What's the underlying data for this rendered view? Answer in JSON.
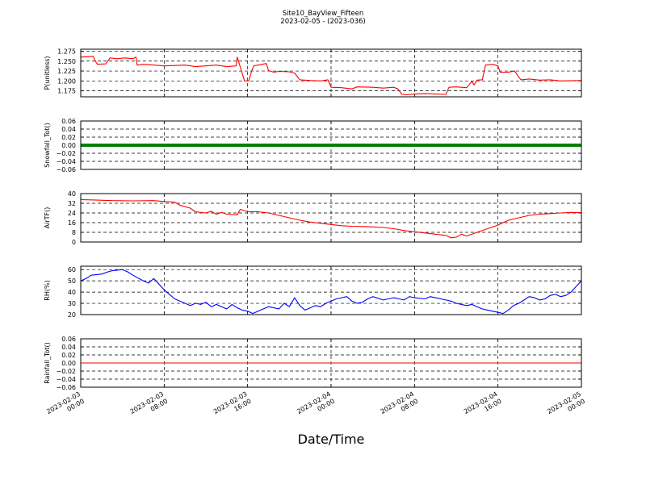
{
  "chart_data": {
    "type": "line",
    "title": "Site10_BayView_Fifteen",
    "subtitle": "2023-02-05 - (2023-036)",
    "xlabel": "Date/Time",
    "x_tick_labels": [
      [
        "2023-02-03",
        "00:00"
      ],
      [
        "2023-02-03",
        "08:00"
      ],
      [
        "2023-02-03",
        "16:00"
      ],
      [
        "2023-02-04",
        "00:00"
      ],
      [
        "2023-02-04",
        "08:00"
      ],
      [
        "2023-02-04",
        "16:00"
      ],
      [
        "2023-02-05",
        "00:00"
      ]
    ],
    "x_hours_range": [
      0,
      48
    ],
    "grid": true,
    "panels": [
      {
        "ylabel": "P(unitless)",
        "color": "#ff0000",
        "ylim": [
          1.16,
          1.28
        ],
        "yticks": [
          1.175,
          1.2,
          1.225,
          1.25,
          1.275
        ],
        "ytick_labels": [
          "1.175",
          "1.200",
          "1.225",
          "1.250",
          "1.275"
        ],
        "points": [
          [
            0,
            1.26
          ],
          [
            1.2,
            1.262
          ],
          [
            1.4,
            1.25
          ],
          [
            1.6,
            1.242
          ],
          [
            2.4,
            1.243
          ],
          [
            2.8,
            1.258
          ],
          [
            3.5,
            1.256
          ],
          [
            4.2,
            1.258
          ],
          [
            5,
            1.256
          ],
          [
            5.3,
            1.26
          ],
          [
            5.4,
            1.24
          ],
          [
            6,
            1.242
          ],
          [
            7,
            1.24
          ],
          [
            8,
            1.238
          ],
          [
            10,
            1.24
          ],
          [
            11,
            1.236
          ],
          [
            13,
            1.24
          ],
          [
            14,
            1.236
          ],
          [
            14.9,
            1.238
          ],
          [
            15,
            1.26
          ],
          [
            15.4,
            1.226
          ],
          [
            15.7,
            1.2
          ],
          [
            16.1,
            1.2
          ],
          [
            16.4,
            1.226
          ],
          [
            16.6,
            1.238
          ],
          [
            17.4,
            1.242
          ],
          [
            17.8,
            1.244
          ],
          [
            18,
            1.226
          ],
          [
            18.5,
            1.222
          ],
          [
            19,
            1.224
          ],
          [
            20,
            1.223
          ],
          [
            20.5,
            1.22
          ],
          [
            21,
            1.203
          ],
          [
            22,
            1.201
          ],
          [
            23,
            1.2
          ],
          [
            23.7,
            1.203
          ],
          [
            24,
            1.184
          ],
          [
            25,
            1.183
          ],
          [
            26,
            1.18
          ],
          [
            26.5,
            1.185
          ],
          [
            28,
            1.184
          ],
          [
            29,
            1.182
          ],
          [
            30,
            1.184
          ],
          [
            30.4,
            1.18
          ],
          [
            30.8,
            1.166
          ],
          [
            31.2,
            1.165
          ],
          [
            32,
            1.167
          ],
          [
            33,
            1.168
          ],
          [
            34,
            1.167
          ],
          [
            35,
            1.166
          ],
          [
            35.3,
            1.184
          ],
          [
            36,
            1.185
          ],
          [
            37,
            1.183
          ],
          [
            37.5,
            1.199
          ],
          [
            37.7,
            1.19
          ],
          [
            38,
            1.202
          ],
          [
            38.5,
            1.203
          ],
          [
            38.8,
            1.24
          ],
          [
            39.5,
            1.242
          ],
          [
            40,
            1.238
          ],
          [
            40.2,
            1.222
          ],
          [
            41,
            1.222
          ],
          [
            41.6,
            1.225
          ],
          [
            42,
            1.21
          ],
          [
            42.2,
            1.203
          ],
          [
            43,
            1.205
          ],
          [
            44,
            1.202
          ],
          [
            45,
            1.203
          ],
          [
            46,
            1.2
          ],
          [
            48,
            1.201
          ]
        ]
      },
      {
        "ylabel": "Snowfall_Tot()",
        "color": "#008000",
        "ylim": [
          -0.06,
          0.06
        ],
        "yticks": [
          -0.06,
          -0.04,
          -0.02,
          0.0,
          0.02,
          0.04,
          0.06
        ],
        "ytick_labels": [
          "−0.06",
          "−0.04",
          "−0.02",
          "0.00",
          "0.02",
          "0.04",
          "0.06"
        ],
        "style": "thick",
        "points": [
          [
            0,
            0
          ],
          [
            48,
            0
          ]
        ]
      },
      {
        "ylabel": "AirTF()",
        "color": "#ff0000",
        "ylim": [
          0,
          40
        ],
        "yticks": [
          0,
          8,
          16,
          24,
          32,
          40
        ],
        "ytick_labels": [
          "0",
          "8",
          "16",
          "24",
          "32",
          "40"
        ],
        "points": [
          [
            0,
            35
          ],
          [
            1,
            34.8
          ],
          [
            3,
            34.2
          ],
          [
            5,
            34
          ],
          [
            7,
            34.2
          ],
          [
            8,
            33.5
          ],
          [
            9,
            33
          ],
          [
            9.5,
            30.5
          ],
          [
            10.5,
            28
          ],
          [
            11,
            25
          ],
          [
            12,
            24
          ],
          [
            12.5,
            25.5
          ],
          [
            13,
            23
          ],
          [
            13.5,
            24.5
          ],
          [
            14,
            23
          ],
          [
            15,
            22.5
          ],
          [
            15.3,
            27
          ],
          [
            16,
            25
          ],
          [
            17,
            25
          ],
          [
            18,
            24
          ],
          [
            19,
            22
          ],
          [
            20,
            20
          ],
          [
            21,
            18
          ],
          [
            22,
            16.5
          ],
          [
            23,
            15.5
          ],
          [
            24,
            14.5
          ],
          [
            25,
            13.5
          ],
          [
            26,
            13
          ],
          [
            27,
            12.8
          ],
          [
            28,
            12.5
          ],
          [
            29,
            12
          ],
          [
            30,
            11
          ],
          [
            31,
            9.5
          ],
          [
            32,
            8.5
          ],
          [
            33,
            7.5
          ],
          [
            34,
            6.5
          ],
          [
            35,
            5.5
          ],
          [
            35.5,
            3.5
          ],
          [
            36,
            4
          ],
          [
            36.5,
            6.5
          ],
          [
            37,
            5
          ],
          [
            38,
            8
          ],
          [
            39,
            11
          ],
          [
            40,
            14
          ],
          [
            41,
            18
          ],
          [
            42,
            20
          ],
          [
            43,
            22
          ],
          [
            44,
            23
          ],
          [
            45,
            23.5
          ],
          [
            46,
            24
          ],
          [
            47,
            24.5
          ],
          [
            48,
            24.3
          ]
        ]
      },
      {
        "ylabel": "RH(%)",
        "color": "#0000ff",
        "ylim": [
          20,
          63
        ],
        "yticks": [
          20,
          30,
          40,
          50,
          60
        ],
        "ytick_labels": [
          "20",
          "30",
          "40",
          "50",
          "60"
        ],
        "points": [
          [
            0,
            50
          ],
          [
            0.5,
            52
          ],
          [
            1,
            55
          ],
          [
            2,
            56
          ],
          [
            2.6,
            58
          ],
          [
            3,
            59
          ],
          [
            4,
            60
          ],
          [
            4.5,
            58
          ],
          [
            5,
            55
          ],
          [
            6,
            50
          ],
          [
            6.5,
            48
          ],
          [
            7,
            52
          ],
          [
            7.5,
            47
          ],
          [
            8,
            42
          ],
          [
            8.5,
            38
          ],
          [
            9,
            34
          ],
          [
            9.5,
            32
          ],
          [
            10,
            30
          ],
          [
            10.5,
            28
          ],
          [
            11,
            30
          ],
          [
            11.5,
            29
          ],
          [
            12,
            31
          ],
          [
            12.5,
            27
          ],
          [
            13,
            29
          ],
          [
            13.5,
            27
          ],
          [
            14,
            25
          ],
          [
            14.5,
            29
          ],
          [
            15,
            26
          ],
          [
            15.5,
            24
          ],
          [
            16,
            23
          ],
          [
            16.5,
            21
          ],
          [
            17,
            23
          ],
          [
            17.5,
            25
          ],
          [
            18,
            27
          ],
          [
            18.5,
            26
          ],
          [
            19,
            25
          ],
          [
            19.5,
            30
          ],
          [
            20,
            27
          ],
          [
            20.5,
            35
          ],
          [
            21,
            28
          ],
          [
            21.5,
            24
          ],
          [
            22,
            26
          ],
          [
            22.5,
            28
          ],
          [
            23,
            27
          ],
          [
            23.5,
            30
          ],
          [
            24,
            32
          ],
          [
            24.5,
            34
          ],
          [
            25,
            35
          ],
          [
            25.5,
            36
          ],
          [
            26,
            32
          ],
          [
            26.5,
            30
          ],
          [
            27,
            31
          ],
          [
            27.5,
            34
          ],
          [
            28,
            36
          ],
          [
            29,
            33
          ],
          [
            30,
            35
          ],
          [
            30.5,
            34
          ],
          [
            31,
            33
          ],
          [
            31.5,
            36
          ],
          [
            32,
            35
          ],
          [
            33,
            34
          ],
          [
            33.5,
            36
          ],
          [
            34,
            35
          ],
          [
            35,
            33
          ],
          [
            35.5,
            32
          ],
          [
            36,
            30
          ],
          [
            37,
            28
          ],
          [
            37.5,
            29
          ],
          [
            38,
            27
          ],
          [
            38.5,
            25
          ],
          [
            39,
            24
          ],
          [
            39.5,
            23
          ],
          [
            40,
            22
          ],
          [
            40.5,
            21
          ],
          [
            41,
            24
          ],
          [
            41.5,
            28
          ],
          [
            42,
            30
          ],
          [
            42.5,
            33
          ],
          [
            43,
            36
          ],
          [
            43.5,
            35
          ],
          [
            44,
            33
          ],
          [
            44.5,
            34
          ],
          [
            45,
            37
          ],
          [
            45.5,
            38
          ],
          [
            46,
            36
          ],
          [
            46.5,
            37
          ],
          [
            47,
            40
          ],
          [
            47.5,
            45
          ],
          [
            48,
            50
          ]
        ]
      },
      {
        "ylabel": "Rainfall_Tot()",
        "color": "#ff0000",
        "ylim": [
          -0.06,
          0.06
        ],
        "yticks": [
          -0.06,
          -0.04,
          -0.02,
          0.0,
          0.02,
          0.04,
          0.06
        ],
        "ytick_labels": [
          "−0.06",
          "−0.04",
          "−0.02",
          "0.00",
          "0.02",
          "0.04",
          "0.06"
        ],
        "points": [
          [
            0,
            0
          ],
          [
            48,
            0
          ]
        ]
      }
    ]
  }
}
